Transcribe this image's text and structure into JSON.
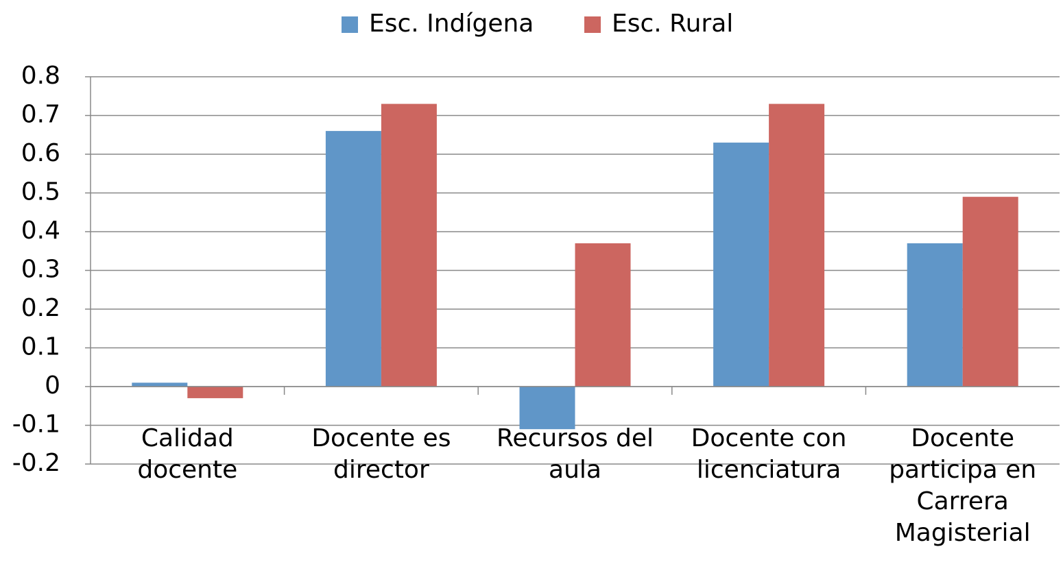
{
  "chart_data": {
    "type": "bar",
    "categories": [
      "Calidad docente",
      "Docente es director",
      "Recursos del aula",
      "Docente con licenciatura",
      "Docente participa en Carrera Magisterial"
    ],
    "series": [
      {
        "name": "Esc. Indígena",
        "color": "#6096c8",
        "values": [
          0.01,
          0.66,
          -0.11,
          0.63,
          0.37
        ]
      },
      {
        "name": "Esc. Rural",
        "color": "#cc6660",
        "values": [
          -0.03,
          0.73,
          0.37,
          0.73,
          0.49
        ]
      }
    ],
    "ylim": [
      -0.2,
      0.8
    ],
    "yticks": [
      -0.2,
      -0.1,
      0,
      0.1,
      0.2,
      0.3,
      0.4,
      0.5,
      0.6,
      0.7,
      0.8
    ],
    "grid": true,
    "legend": "top"
  }
}
